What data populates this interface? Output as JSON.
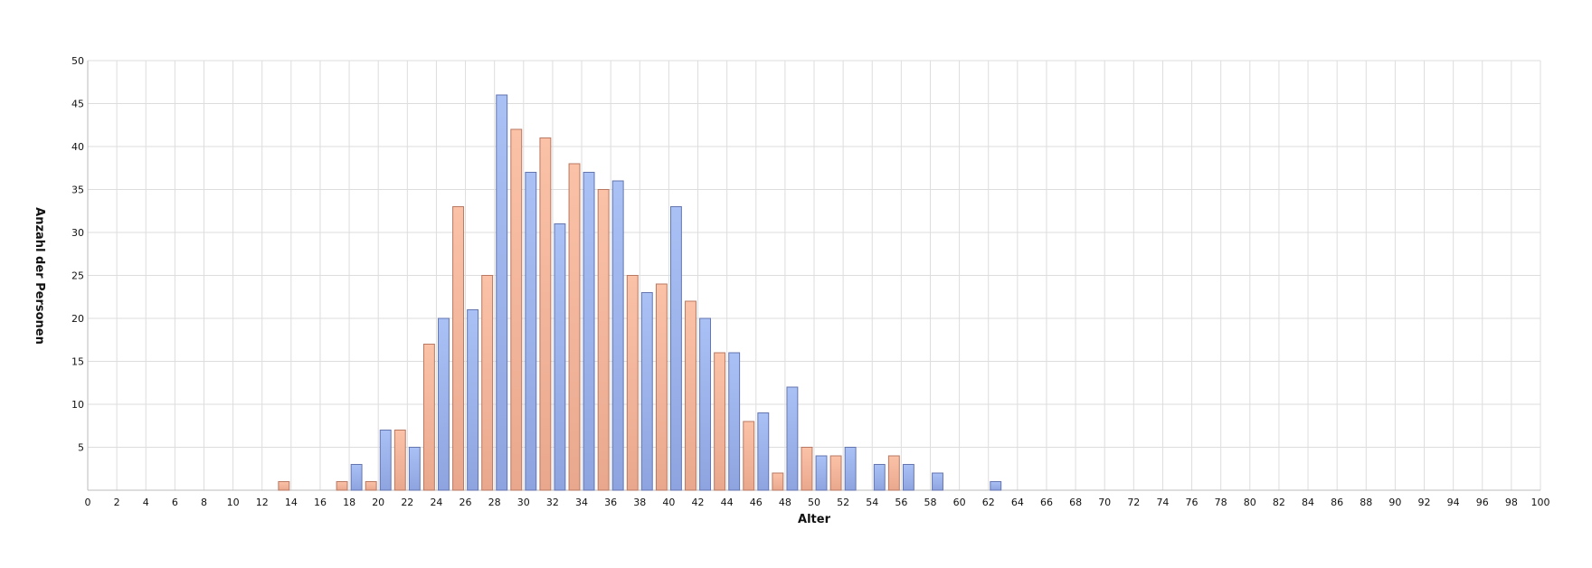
{
  "chart_data": {
    "type": "bar",
    "title": "",
    "xlabel": "Alter",
    "ylabel": "Anzahl der Personen",
    "xlim": [
      0,
      100
    ],
    "ylim": [
      0,
      50
    ],
    "x_ticks": [
      0,
      2,
      4,
      6,
      8,
      10,
      12,
      14,
      16,
      18,
      20,
      22,
      24,
      26,
      28,
      30,
      32,
      34,
      36,
      38,
      40,
      42,
      44,
      46,
      48,
      50,
      52,
      54,
      56,
      58,
      60,
      62,
      64,
      66,
      68,
      70,
      72,
      74,
      76,
      78,
      80,
      82,
      84,
      86,
      88,
      90,
      92,
      94,
      96,
      98,
      100
    ],
    "y_ticks": [
      5,
      10,
      15,
      20,
      25,
      30,
      35,
      40,
      45,
      50
    ],
    "y_tick_labels": [
      "5",
      "10",
      "15",
      "20",
      "25",
      "30",
      "35",
      "40",
      "45",
      "50"
    ],
    "grid": true,
    "legend": "none",
    "bars": [
      {
        "x": 13,
        "value": 1,
        "color_key": "salmon"
      },
      {
        "x": 17,
        "value": 1,
        "color_key": "salmon"
      },
      {
        "x": 18,
        "value": 3,
        "color_key": "blue"
      },
      {
        "x": 19,
        "value": 1,
        "color_key": "salmon"
      },
      {
        "x": 20,
        "value": 7,
        "color_key": "blue"
      },
      {
        "x": 21,
        "value": 7,
        "color_key": "salmon"
      },
      {
        "x": 22,
        "value": 5,
        "color_key": "blue"
      },
      {
        "x": 23,
        "value": 17,
        "color_key": "salmon"
      },
      {
        "x": 24,
        "value": 20,
        "color_key": "blue"
      },
      {
        "x": 25,
        "value": 33,
        "color_key": "salmon"
      },
      {
        "x": 26,
        "value": 21,
        "color_key": "blue"
      },
      {
        "x": 27,
        "value": 25,
        "color_key": "salmon"
      },
      {
        "x": 28,
        "value": 46,
        "color_key": "blue"
      },
      {
        "x": 29,
        "value": 42,
        "color_key": "salmon"
      },
      {
        "x": 30,
        "value": 37,
        "color_key": "blue"
      },
      {
        "x": 31,
        "value": 41,
        "color_key": "salmon"
      },
      {
        "x": 32,
        "value": 31,
        "color_key": "blue"
      },
      {
        "x": 33,
        "value": 38,
        "color_key": "salmon"
      },
      {
        "x": 34,
        "value": 37,
        "color_key": "blue"
      },
      {
        "x": 35,
        "value": 35,
        "color_key": "salmon"
      },
      {
        "x": 36,
        "value": 36,
        "color_key": "blue"
      },
      {
        "x": 37,
        "value": 25,
        "color_key": "salmon"
      },
      {
        "x": 38,
        "value": 23,
        "color_key": "blue"
      },
      {
        "x": 39,
        "value": 24,
        "color_key": "salmon"
      },
      {
        "x": 40,
        "value": 33,
        "color_key": "blue"
      },
      {
        "x": 41,
        "value": 22,
        "color_key": "salmon"
      },
      {
        "x": 42,
        "value": 20,
        "color_key": "blue"
      },
      {
        "x": 43,
        "value": 16,
        "color_key": "salmon"
      },
      {
        "x": 44,
        "value": 16,
        "color_key": "blue"
      },
      {
        "x": 45,
        "value": 8,
        "color_key": "salmon"
      },
      {
        "x": 46,
        "value": 9,
        "color_key": "blue"
      },
      {
        "x": 47,
        "value": 2,
        "color_key": "salmon"
      },
      {
        "x": 48,
        "value": 12,
        "color_key": "blue"
      },
      {
        "x": 49,
        "value": 5,
        "color_key": "salmon"
      },
      {
        "x": 50,
        "value": 4,
        "color_key": "blue"
      },
      {
        "x": 51,
        "value": 4,
        "color_key": "salmon"
      },
      {
        "x": 52,
        "value": 5,
        "color_key": "blue"
      },
      {
        "x": 54,
        "value": 3,
        "color_key": "blue"
      },
      {
        "x": 55,
        "value": 4,
        "color_key": "salmon"
      },
      {
        "x": 56,
        "value": 3,
        "color_key": "blue"
      },
      {
        "x": 58,
        "value": 2,
        "color_key": "blue"
      },
      {
        "x": 62,
        "value": 1,
        "color_key": "blue"
      }
    ],
    "colors": {
      "blue": {
        "top": "#a9c1f5",
        "bottom": "#8ea4e0",
        "stroke": "#6475b0"
      },
      "salmon": {
        "top": "#fbc2a8",
        "bottom": "#e9a88e",
        "stroke": "#b87862"
      },
      "grid": "#dddddd",
      "axis": "#bbbbbb"
    }
  }
}
